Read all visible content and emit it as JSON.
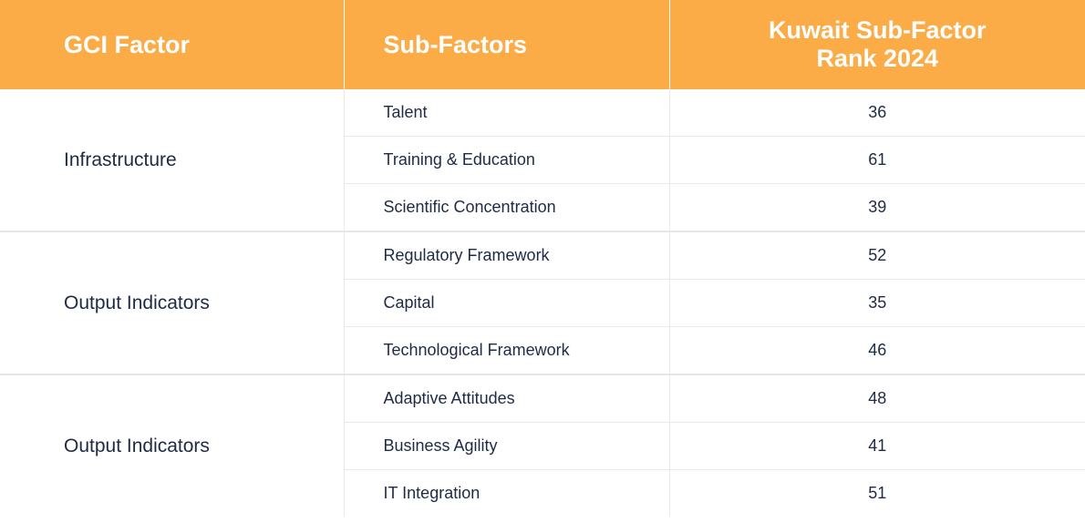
{
  "table": {
    "headers": {
      "factor": "GCI Factor",
      "subfactors": "Sub-Factors",
      "rank_line1": "Kuwait Sub-Factor",
      "rank_line2": "Rank 2024"
    },
    "groups": [
      {
        "factor": "Infrastructure",
        "rows": [
          {
            "subfactor": "Talent",
            "rank": "36"
          },
          {
            "subfactor": "Training & Education",
            "rank": "61"
          },
          {
            "subfactor": "Scientific Concentration",
            "rank": "39"
          }
        ]
      },
      {
        "factor": "Output Indicators",
        "rows": [
          {
            "subfactor": "Regulatory Framework",
            "rank": "52"
          },
          {
            "subfactor": "Capital",
            "rank": "35"
          },
          {
            "subfactor": "Technological Framework",
            "rank": "46"
          }
        ]
      },
      {
        "factor": "Output Indicators",
        "rows": [
          {
            "subfactor": "Adaptive Attitudes",
            "rank": "48"
          },
          {
            "subfactor": "Business Agility",
            "rank": "41"
          },
          {
            "subfactor": "IT Integration",
            "rank": "51"
          }
        ]
      }
    ]
  }
}
